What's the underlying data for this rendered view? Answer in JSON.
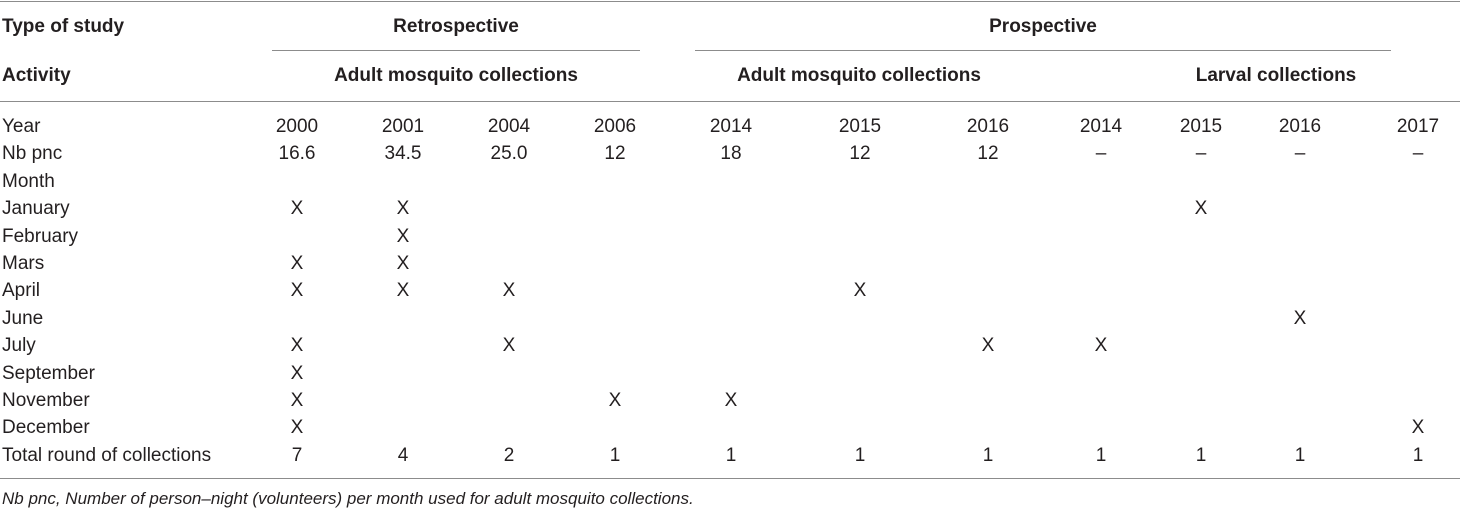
{
  "header": {
    "type_label": "Type of study",
    "activity_label": "Activity",
    "retrospective": "Retrospective",
    "prospective": "Prospective",
    "retro_activity": "Adult mosquito collections",
    "pro_adult_activity": "Adult mosquito collections",
    "pro_larval_activity": "Larval collections"
  },
  "rows": [
    {
      "label": "Year",
      "cells": [
        "2000",
        "2001",
        "2004",
        "2006",
        "2014",
        "2015",
        "2016",
        "2014",
        "2015",
        "2016",
        "2017"
      ]
    },
    {
      "label": "Nb pnc",
      "cells": [
        "16.6",
        "34.5",
        "25.0",
        "12",
        "18",
        "12",
        "12",
        "–",
        "–",
        "–",
        "–"
      ]
    },
    {
      "label": "Month",
      "cells": [
        "",
        "",
        "",
        "",
        "",
        "",
        "",
        "",
        "",
        "",
        ""
      ]
    },
    {
      "label": "January",
      "cells": [
        "X",
        "X",
        "",
        "",
        "",
        "",
        "",
        "",
        "X",
        "",
        ""
      ]
    },
    {
      "label": "February",
      "cells": [
        "",
        "X",
        "",
        "",
        "",
        "",
        "",
        "",
        "",
        "",
        ""
      ]
    },
    {
      "label": "Mars",
      "cells": [
        "X",
        "X",
        "",
        "",
        "",
        "",
        "",
        "",
        "",
        "",
        ""
      ]
    },
    {
      "label": "April",
      "cells": [
        "X",
        "X",
        "X",
        "",
        "",
        "X",
        "",
        "",
        "",
        "",
        ""
      ]
    },
    {
      "label": "June",
      "cells": [
        "",
        "",
        "",
        "",
        "",
        "",
        "",
        "",
        "",
        "X",
        ""
      ]
    },
    {
      "label": "July",
      "cells": [
        "X",
        "",
        "X",
        "",
        "",
        "",
        "X",
        "X",
        "",
        "",
        ""
      ]
    },
    {
      "label": "September",
      "cells": [
        "X",
        "",
        "",
        "",
        "",
        "",
        "",
        "",
        "",
        "",
        ""
      ]
    },
    {
      "label": "November",
      "cells": [
        "X",
        "",
        "",
        "X",
        "X",
        "",
        "",
        "",
        "",
        "",
        ""
      ]
    },
    {
      "label": "December",
      "cells": [
        "X",
        "",
        "",
        "",
        "",
        "",
        "",
        "",
        "",
        "",
        "X"
      ]
    },
    {
      "label": "Total round of collections",
      "cells": [
        "7",
        "4",
        "2",
        "1",
        "1",
        "1",
        "1",
        "1",
        "1",
        "1",
        "1"
      ]
    }
  ],
  "footnote": "Nb pnc, Number of person–night (volunteers) per month used for adult mosquito collections."
}
